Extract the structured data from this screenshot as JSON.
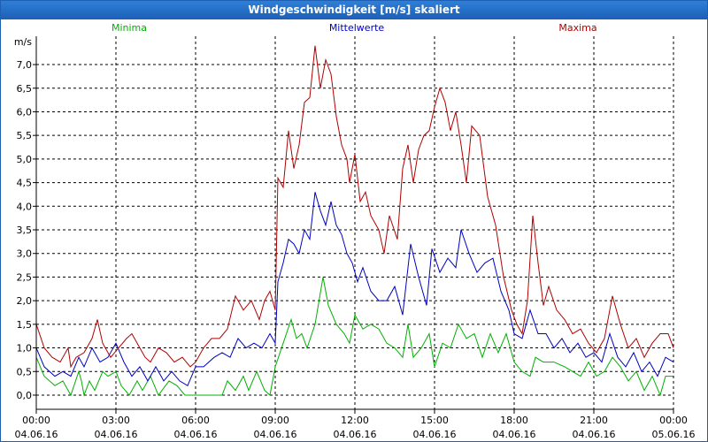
{
  "title": "Windgeschwindigkeit [m/s] skaliert",
  "chart_data": {
    "type": "line",
    "unit_label": "m/s",
    "ylim": [
      -0.3,
      7.6
    ],
    "y_ticks": [
      "0,0",
      "0,5",
      "1,0",
      "1,5",
      "2,0",
      "2,5",
      "3,0",
      "3,5",
      "4,0",
      "4,5",
      "5,0",
      "5,5",
      "6,0",
      "6,5",
      "7,0"
    ],
    "x_ticks": [
      {
        "time": "00:00",
        "date": "04.06.16"
      },
      {
        "time": "03:00",
        "date": "04.06.16"
      },
      {
        "time": "06:00",
        "date": "04.06.16"
      },
      {
        "time": "09:00",
        "date": "04.06.16"
      },
      {
        "time": "12:00",
        "date": "04.06.16"
      },
      {
        "time": "15:00",
        "date": "04.06.16"
      },
      {
        "time": "18:00",
        "date": "04.06.16"
      },
      {
        "time": "21:00",
        "date": "04.06.16"
      },
      {
        "time": "00:00",
        "date": "05.06.16"
      }
    ],
    "x_range_hours": [
      0,
      24
    ],
    "series": [
      {
        "name": "Minima",
        "color": "#00b000",
        "points": [
          [
            0,
            0.8
          ],
          [
            0.3,
            0.4
          ],
          [
            0.7,
            0.2
          ],
          [
            1.0,
            0.3
          ],
          [
            1.3,
            0.0
          ],
          [
            1.6,
            0.5
          ],
          [
            1.7,
            0.3
          ],
          [
            1.8,
            0.0
          ],
          [
            2.0,
            0.3
          ],
          [
            2.2,
            0.1
          ],
          [
            2.5,
            0.5
          ],
          [
            2.7,
            0.4
          ],
          [
            3.0,
            0.5
          ],
          [
            3.2,
            0.2
          ],
          [
            3.5,
            0.0
          ],
          [
            3.8,
            0.3
          ],
          [
            4.0,
            0.1
          ],
          [
            4.3,
            0.4
          ],
          [
            4.6,
            0.0
          ],
          [
            5.0,
            0.3
          ],
          [
            5.3,
            0.2
          ],
          [
            5.6,
            0.0
          ],
          [
            6.0,
            0.0
          ],
          [
            6.3,
            0.0
          ],
          [
            6.6,
            0.0
          ],
          [
            7.0,
            0.0
          ],
          [
            7.2,
            0.3
          ],
          [
            7.5,
            0.1
          ],
          [
            7.8,
            0.4
          ],
          [
            8.0,
            0.1
          ],
          [
            8.3,
            0.5
          ],
          [
            8.6,
            0.1
          ],
          [
            8.8,
            0.0
          ],
          [
            9.0,
            0.6
          ],
          [
            9.3,
            1.1
          ],
          [
            9.6,
            1.6
          ],
          [
            9.8,
            1.2
          ],
          [
            10.0,
            1.3
          ],
          [
            10.2,
            1.0
          ],
          [
            10.5,
            1.5
          ],
          [
            10.8,
            2.5
          ],
          [
            11.0,
            1.9
          ],
          [
            11.3,
            1.5
          ],
          [
            11.6,
            1.3
          ],
          [
            11.8,
            1.1
          ],
          [
            12.0,
            1.7
          ],
          [
            12.3,
            1.4
          ],
          [
            12.6,
            1.5
          ],
          [
            12.9,
            1.4
          ],
          [
            13.2,
            1.1
          ],
          [
            13.5,
            1.0
          ],
          [
            13.8,
            0.8
          ],
          [
            14.0,
            1.5
          ],
          [
            14.2,
            0.8
          ],
          [
            14.5,
            1.0
          ],
          [
            14.8,
            1.3
          ],
          [
            15.0,
            0.6
          ],
          [
            15.3,
            1.1
          ],
          [
            15.6,
            1.0
          ],
          [
            15.9,
            1.5
          ],
          [
            16.2,
            1.2
          ],
          [
            16.5,
            1.3
          ],
          [
            16.8,
            0.8
          ],
          [
            17.1,
            1.3
          ],
          [
            17.4,
            0.9
          ],
          [
            17.7,
            1.3
          ],
          [
            18.0,
            0.7
          ],
          [
            18.3,
            0.5
          ],
          [
            18.6,
            0.4
          ],
          [
            18.8,
            0.8
          ],
          [
            19.1,
            0.7
          ],
          [
            19.5,
            0.7
          ],
          [
            19.9,
            0.6
          ],
          [
            20.2,
            0.5
          ],
          [
            20.5,
            0.4
          ],
          [
            20.8,
            0.7
          ],
          [
            21.1,
            0.4
          ],
          [
            21.4,
            0.5
          ],
          [
            21.7,
            0.8
          ],
          [
            22.0,
            0.6
          ],
          [
            22.3,
            0.3
          ],
          [
            22.6,
            0.5
          ],
          [
            22.9,
            0.1
          ],
          [
            23.2,
            0.4
          ],
          [
            23.5,
            0.0
          ],
          [
            23.7,
            0.4
          ],
          [
            24.0,
            0.4
          ]
        ]
      },
      {
        "name": "Mittelwerte",
        "color": "#0000c0",
        "points": [
          [
            0,
            1.0
          ],
          [
            0.3,
            0.6
          ],
          [
            0.7,
            0.4
          ],
          [
            1.0,
            0.5
          ],
          [
            1.3,
            0.4
          ],
          [
            1.6,
            0.8
          ],
          [
            1.8,
            0.6
          ],
          [
            2.1,
            1.0
          ],
          [
            2.4,
            0.7
          ],
          [
            2.7,
            0.8
          ],
          [
            3.0,
            1.1
          ],
          [
            3.3,
            0.7
          ],
          [
            3.6,
            0.4
          ],
          [
            3.9,
            0.6
          ],
          [
            4.2,
            0.3
          ],
          [
            4.5,
            0.6
          ],
          [
            4.8,
            0.3
          ],
          [
            5.1,
            0.5
          ],
          [
            5.4,
            0.3
          ],
          [
            5.7,
            0.2
          ],
          [
            6.0,
            0.6
          ],
          [
            6.3,
            0.6
          ],
          [
            6.7,
            0.8
          ],
          [
            7.0,
            0.9
          ],
          [
            7.3,
            0.8
          ],
          [
            7.6,
            1.2
          ],
          [
            7.9,
            1.0
          ],
          [
            8.2,
            1.1
          ],
          [
            8.5,
            1.0
          ],
          [
            8.8,
            1.3
          ],
          [
            9.0,
            1.1
          ],
          [
            9.1,
            2.4
          ],
          [
            9.3,
            2.8
          ],
          [
            9.5,
            3.3
          ],
          [
            9.7,
            3.2
          ],
          [
            9.9,
            3.0
          ],
          [
            10.1,
            3.5
          ],
          [
            10.3,
            3.3
          ],
          [
            10.5,
            4.3
          ],
          [
            10.7,
            3.9
          ],
          [
            10.9,
            3.6
          ],
          [
            11.1,
            4.1
          ],
          [
            11.3,
            3.6
          ],
          [
            11.5,
            3.4
          ],
          [
            11.7,
            3.0
          ],
          [
            11.9,
            2.8
          ],
          [
            12.1,
            2.4
          ],
          [
            12.3,
            2.7
          ],
          [
            12.6,
            2.2
          ],
          [
            12.9,
            2.0
          ],
          [
            13.2,
            2.0
          ],
          [
            13.5,
            2.3
          ],
          [
            13.8,
            1.7
          ],
          [
            14.1,
            3.2
          ],
          [
            14.4,
            2.5
          ],
          [
            14.7,
            1.9
          ],
          [
            14.9,
            3.1
          ],
          [
            15.2,
            2.6
          ],
          [
            15.5,
            2.9
          ],
          [
            15.8,
            2.7
          ],
          [
            16.0,
            3.5
          ],
          [
            16.3,
            3.0
          ],
          [
            16.6,
            2.6
          ],
          [
            16.9,
            2.8
          ],
          [
            17.2,
            2.9
          ],
          [
            17.5,
            2.2
          ],
          [
            17.8,
            1.8
          ],
          [
            18.0,
            1.3
          ],
          [
            18.3,
            1.2
          ],
          [
            18.6,
            1.8
          ],
          [
            18.9,
            1.3
          ],
          [
            19.2,
            1.3
          ],
          [
            19.5,
            1.0
          ],
          [
            19.8,
            1.2
          ],
          [
            20.1,
            0.9
          ],
          [
            20.4,
            1.1
          ],
          [
            20.7,
            0.8
          ],
          [
            21.0,
            0.9
          ],
          [
            21.3,
            0.7
          ],
          [
            21.6,
            1.3
          ],
          [
            21.9,
            0.8
          ],
          [
            22.2,
            0.6
          ],
          [
            22.5,
            0.9
          ],
          [
            22.8,
            0.5
          ],
          [
            23.1,
            0.7
          ],
          [
            23.4,
            0.4
          ],
          [
            23.7,
            0.8
          ],
          [
            24.0,
            0.7
          ]
        ]
      },
      {
        "name": "Maxima",
        "color": "#b00000",
        "points": [
          [
            0,
            1.5
          ],
          [
            0.3,
            1.0
          ],
          [
            0.6,
            0.8
          ],
          [
            0.9,
            0.7
          ],
          [
            1.2,
            1.0
          ],
          [
            1.3,
            0.6
          ],
          [
            1.5,
            0.8
          ],
          [
            1.8,
            0.9
          ],
          [
            2.1,
            1.2
          ],
          [
            2.3,
            1.6
          ],
          [
            2.5,
            1.1
          ],
          [
            2.8,
            0.8
          ],
          [
            3.1,
            1.0
          ],
          [
            3.4,
            1.2
          ],
          [
            3.6,
            1.3
          ],
          [
            3.9,
            1.0
          ],
          [
            4.1,
            0.8
          ],
          [
            4.3,
            0.7
          ],
          [
            4.6,
            1.0
          ],
          [
            4.9,
            0.9
          ],
          [
            5.2,
            0.7
          ],
          [
            5.5,
            0.8
          ],
          [
            5.8,
            0.6
          ],
          [
            6.0,
            0.7
          ],
          [
            6.3,
            1.0
          ],
          [
            6.6,
            1.2
          ],
          [
            6.9,
            1.2
          ],
          [
            7.2,
            1.4
          ],
          [
            7.5,
            2.1
          ],
          [
            7.8,
            1.8
          ],
          [
            8.1,
            2.0
          ],
          [
            8.4,
            1.6
          ],
          [
            8.6,
            2.0
          ],
          [
            8.8,
            2.2
          ],
          [
            9.0,
            1.8
          ],
          [
            9.1,
            4.6
          ],
          [
            9.3,
            4.4
          ],
          [
            9.5,
            5.6
          ],
          [
            9.7,
            4.8
          ],
          [
            9.9,
            5.3
          ],
          [
            10.1,
            6.2
          ],
          [
            10.3,
            6.3
          ],
          [
            10.5,
            7.4
          ],
          [
            10.7,
            6.5
          ],
          [
            10.9,
            7.1
          ],
          [
            11.1,
            6.8
          ],
          [
            11.3,
            5.9
          ],
          [
            11.5,
            5.3
          ],
          [
            11.7,
            5.0
          ],
          [
            11.8,
            4.5
          ],
          [
            12.0,
            5.1
          ],
          [
            12.2,
            4.1
          ],
          [
            12.4,
            4.3
          ],
          [
            12.6,
            3.8
          ],
          [
            12.9,
            3.5
          ],
          [
            13.1,
            3.0
          ],
          [
            13.3,
            3.8
          ],
          [
            13.6,
            3.3
          ],
          [
            13.8,
            4.8
          ],
          [
            14.0,
            5.3
          ],
          [
            14.2,
            4.5
          ],
          [
            14.4,
            5.2
          ],
          [
            14.6,
            5.5
          ],
          [
            14.8,
            5.6
          ],
          [
            15.0,
            6.1
          ],
          [
            15.2,
            6.5
          ],
          [
            15.4,
            6.2
          ],
          [
            15.6,
            5.6
          ],
          [
            15.8,
            6.0
          ],
          [
            16.0,
            5.3
          ],
          [
            16.2,
            4.5
          ],
          [
            16.4,
            5.7
          ],
          [
            16.7,
            5.5
          ],
          [
            17.0,
            4.2
          ],
          [
            17.3,
            3.6
          ],
          [
            17.6,
            2.5
          ],
          [
            17.9,
            1.8
          ],
          [
            18.1,
            1.5
          ],
          [
            18.3,
            1.3
          ],
          [
            18.5,
            2.0
          ],
          [
            18.7,
            3.8
          ],
          [
            18.9,
            2.8
          ],
          [
            19.1,
            1.9
          ],
          [
            19.3,
            2.3
          ],
          [
            19.6,
            1.8
          ],
          [
            19.9,
            1.6
          ],
          [
            20.2,
            1.3
          ],
          [
            20.5,
            1.4
          ],
          [
            20.8,
            1.1
          ],
          [
            21.1,
            0.9
          ],
          [
            21.4,
            1.2
          ],
          [
            21.7,
            2.1
          ],
          [
            22.0,
            1.5
          ],
          [
            22.3,
            1.0
          ],
          [
            22.6,
            1.2
          ],
          [
            22.9,
            0.8
          ],
          [
            23.2,
            1.1
          ],
          [
            23.5,
            1.3
          ],
          [
            23.8,
            1.3
          ],
          [
            24.0,
            1.0
          ]
        ]
      }
    ]
  }
}
